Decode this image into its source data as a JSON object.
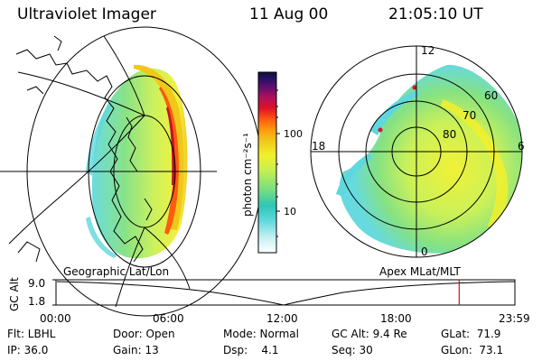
{
  "header": {
    "title": "Ultraviolet Imager",
    "date": "11 Aug 00",
    "time": "21:05:10 UT"
  },
  "colorbar": {
    "unit_label": "photon cm⁻²s⁻¹",
    "ticks": [
      "100",
      "10"
    ],
    "colors": [
      "#ffffff",
      "#c9f1f2",
      "#5ed8dd",
      "#2fc6b4",
      "#7fe07c",
      "#c8f050",
      "#f1f02c",
      "#f0c81a",
      "#ff9a10",
      "#ff5a10",
      "#e0102a",
      "#b0105a",
      "#5a1070",
      "#201060",
      "#101030"
    ]
  },
  "polar_map": {
    "mlt_labels": {
      "top": "12",
      "left": "18",
      "right": "6",
      "bottom": "0"
    },
    "lat_labels": [
      "60",
      "70",
      "80"
    ]
  },
  "timeline": {
    "left_label": "Geographic Lat/Lon",
    "right_label": "Apex MLat/MLT",
    "y_axis_label": "GC Alt",
    "y_ticks": [
      "9.0",
      "1.8"
    ],
    "x_ticks": [
      "00:00",
      "06:00",
      "12:00",
      "18:00",
      "23:59"
    ],
    "current_marker_hour": 21.086,
    "marker_color": "#cc1020"
  },
  "footer": {
    "filter": "Flt: LBHL",
    "ip": "IP: 36.0",
    "door": "Door: Open",
    "gain": "Gain: 13",
    "mode": "Mode: Normal",
    "dsp": "Dsp:    4.1",
    "gc_alt": "GC Alt: 9.4 Re",
    "seq": "Seq: 30",
    "glat": "GLat:  71.9",
    "glon": "GLon:  73.1"
  }
}
